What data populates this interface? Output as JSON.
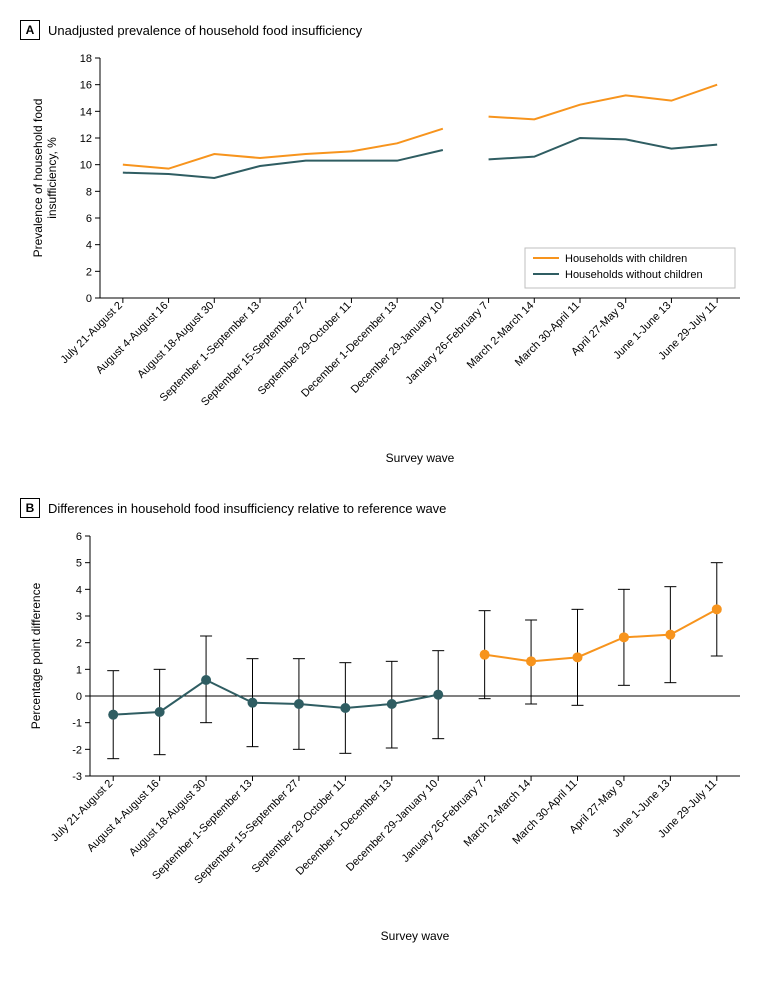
{
  "panelA": {
    "letter": "A",
    "title": "Unadjusted prevalence of household food insufficiency",
    "ylabel": "Prevalence of household food\ninsufficiency, %",
    "xlabel": "Survey wave",
    "ylim": [
      0,
      18
    ],
    "ytick_step": 2,
    "categories": [
      "July 21-August 2",
      "August 4-August 16",
      "August 18-August 30",
      "September 1-September 13",
      "September 15-September 27",
      "September 29-October 11",
      "December 1-December 13",
      "December 29-January 10",
      "January 26-February 7",
      "March 2-March 14",
      "March 30-April 11",
      "April 27-May 9",
      "June 1-June 13",
      "June 29-July 11"
    ],
    "break_after_index": 7,
    "series": [
      {
        "name": "Households with children",
        "color": "#f7941d",
        "values": [
          10.0,
          9.7,
          10.8,
          10.5,
          10.8,
          11.0,
          11.6,
          12.7,
          13.6,
          13.4,
          14.5,
          15.2,
          14.8,
          16.0
        ]
      },
      {
        "name": "Households without children",
        "color": "#2f5d62",
        "values": [
          9.4,
          9.3,
          9.0,
          9.9,
          10.3,
          10.3,
          10.3,
          11.1,
          10.4,
          10.6,
          12.0,
          11.9,
          11.2,
          11.5
        ]
      }
    ],
    "legend": {
      "items": [
        "Households with children",
        "Households without children"
      ],
      "colors": [
        "#f7941d",
        "#2f5d62"
      ]
    },
    "axis_color": "#000000",
    "line_width": 2,
    "label_fontsize": 12,
    "tick_fontsize": 11
  },
  "panelB": {
    "letter": "B",
    "title": "Differences in household food insufficiency relative to reference wave",
    "ylabel": "Percentage point difference",
    "xlabel": "Survey wave",
    "ylim": [
      -3,
      6
    ],
    "ytick_step": 1,
    "categories": [
      "July 21-August 2",
      "August 4-August 16",
      "August 18-August 30",
      "September 1-September 13",
      "September 15-September 27",
      "September 29-October 11",
      "December 1-December 13",
      "December 29-January 10",
      "January 26-February 7",
      "March 2-March 14",
      "March 30-April 11",
      "April 27-May 9",
      "June 1-June 13",
      "June 29-July 11"
    ],
    "points": [
      {
        "value": -0.7,
        "low": -2.35,
        "high": 0.95,
        "color": "#2f5d62"
      },
      {
        "value": -0.6,
        "low": -2.2,
        "high": 1.0,
        "color": "#2f5d62"
      },
      {
        "value": 0.6,
        "low": -1.0,
        "high": 2.25,
        "color": "#2f5d62"
      },
      {
        "value": -0.25,
        "low": -1.9,
        "high": 1.4,
        "color": "#2f5d62"
      },
      {
        "value": -0.3,
        "low": -2.0,
        "high": 1.4,
        "color": "#2f5d62"
      },
      {
        "value": -0.45,
        "low": -2.15,
        "high": 1.25,
        "color": "#2f5d62"
      },
      {
        "value": -0.3,
        "low": -1.95,
        "high": 1.3,
        "color": "#2f5d62"
      },
      {
        "value": 0.05,
        "low": -1.6,
        "high": 1.7,
        "color": "#2f5d62"
      },
      {
        "value": 1.55,
        "low": -0.1,
        "high": 3.2,
        "color": "#f7941d"
      },
      {
        "value": 1.3,
        "low": -0.3,
        "high": 2.85,
        "color": "#f7941d"
      },
      {
        "value": 1.45,
        "low": -0.35,
        "high": 3.25,
        "color": "#f7941d"
      },
      {
        "value": 2.2,
        "low": 0.4,
        "high": 4.0,
        "color": "#f7941d"
      },
      {
        "value": 2.3,
        "low": 0.5,
        "high": 4.1,
        "color": "#f7941d"
      },
      {
        "value": 3.25,
        "low": 1.5,
        "high": 5.0,
        "color": "#f7941d"
      }
    ],
    "marker_radius": 5,
    "line_width": 2,
    "errorbar_width": 1,
    "cap_half_width": 6,
    "axis_color": "#000000",
    "zero_line_color": "#000000",
    "label_fontsize": 12,
    "tick_fontsize": 11
  }
}
